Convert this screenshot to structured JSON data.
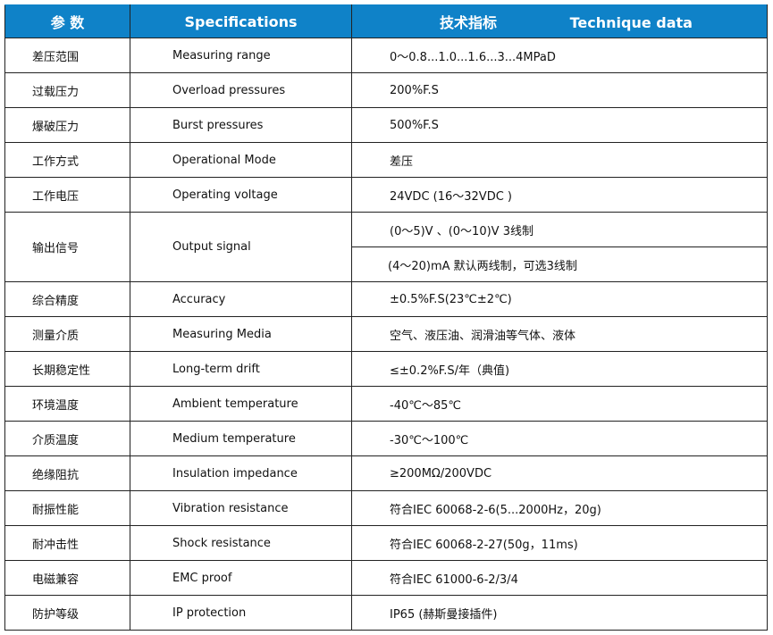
{
  "header": {
    "param": "参  数",
    "spec": "Specifications",
    "tech_cn": "技术指标",
    "tech_en": "Technique data",
    "color": "#0f82c8"
  },
  "rows": [
    {
      "cn": "差压范围",
      "en": "Measuring range",
      "val": "0～0.8...1.0...1.6...3...4MPaD"
    },
    {
      "cn": "过载压力",
      "en": "Overload pressures",
      "val": "200%F.S"
    },
    {
      "cn": "爆破压力",
      "en": "Burst pressures",
      "val": "500%F.S"
    },
    {
      "cn": "工作方式",
      "en": "Operational Mode",
      "val": "差压"
    },
    {
      "cn": "工作电压",
      "en": "Operating voltage",
      "val": "24VDC (16～32VDC )"
    },
    {
      "cn": "输出信号",
      "en": "Output signal",
      "val": "(0～5)V 、(0～10)V  3线制",
      "val2": "(4～20)mA  默认两线制，可选3线制"
    },
    {
      "cn": "综合精度",
      "en": "Accuracy",
      "val": "±0.5%F.S(23℃±2℃)"
    },
    {
      "cn": "测量介质",
      "en": "Measuring Media",
      "val": "空气、液压油、润滑油等气体、液体"
    },
    {
      "cn": "长期稳定性",
      "en": "Long-term drift",
      "val": "≤±0.2%F.S/年（典值)"
    },
    {
      "cn": "环境温度",
      "en": "Ambient temperature",
      "val": "-40℃～85℃"
    },
    {
      "cn": "介质温度",
      "en": "Medium temperature",
      "val": "-30℃～100℃"
    },
    {
      "cn": "绝缘阻抗",
      "en": "Insulation impedance",
      "val": "≥200MΩ/200VDC"
    },
    {
      "cn": "耐振性能",
      "en": "Vibration resistance",
      "val": "符合IEC 60068-2-6(5...2000Hz，20g)"
    },
    {
      "cn": "耐冲击性",
      "en": "Shock   resistance",
      "val": "符合IEC 60068-2-27(50g，11ms)"
    },
    {
      "cn": "电磁兼容",
      "en": "EMC proof",
      "val": "符合IEC 61000-6-2/3/4"
    },
    {
      "cn": "防护等级",
      "en": "IP protection",
      "val": "IP65 (赫斯曼接插件)"
    }
  ]
}
